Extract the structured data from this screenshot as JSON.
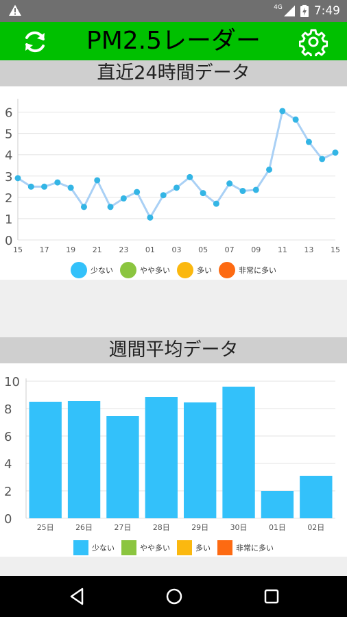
{
  "status_bar": {
    "network": "4G",
    "time": "7:49"
  },
  "app_bar": {
    "title": "PM2.5レーダー",
    "color": "#00c000"
  },
  "hourly_section": {
    "header": "直近24時間データ"
  },
  "weekly_section": {
    "header": "週間平均データ"
  },
  "legend": {
    "items": [
      {
        "label": "少ない",
        "color": "#33c1fa"
      },
      {
        "label": "やや多い",
        "color": "#8bc53f"
      },
      {
        "label": "多い",
        "color": "#fbb80f"
      },
      {
        "label": "非常に多い",
        "color": "#fd6a12"
      }
    ]
  },
  "chart_data": [
    {
      "type": "line",
      "x": [
        "15",
        "16",
        "17",
        "18",
        "19",
        "20",
        "21",
        "22",
        "23",
        "00",
        "01",
        "02",
        "03",
        "04",
        "05",
        "06",
        "07",
        "08",
        "09",
        "10",
        "11",
        "12",
        "13",
        "14",
        "15"
      ],
      "values": [
        2.9,
        2.5,
        2.5,
        2.7,
        2.45,
        1.55,
        2.8,
        1.55,
        1.95,
        2.25,
        1.05,
        2.1,
        2.45,
        2.95,
        2.2,
        1.7,
        2.65,
        2.3,
        2.35,
        3.3,
        6.05,
        5.65,
        4.6,
        3.8,
        4.1
      ],
      "x_tick_labels": [
        "15",
        "17",
        "19",
        "21",
        "23",
        "01",
        "03",
        "05",
        "07",
        "09",
        "11",
        "13",
        "15"
      ],
      "y_ticks": [
        0,
        1,
        2,
        3,
        4,
        5,
        6
      ],
      "ylim": [
        0,
        6.5
      ],
      "line_color": "#a9d0f5",
      "point_color": "#33b5e5",
      "grid": true
    },
    {
      "type": "bar",
      "categories": [
        "25日",
        "26日",
        "27日",
        "28日",
        "29日",
        "30日",
        "01日",
        "02日"
      ],
      "values": [
        8.5,
        8.55,
        7.45,
        8.85,
        8.45,
        9.6,
        2.0,
        3.1
      ],
      "y_ticks": [
        0,
        2,
        4,
        6,
        8,
        10
      ],
      "ylim": [
        0,
        10
      ],
      "bar_color": "#33c1fa",
      "grid": true
    }
  ]
}
